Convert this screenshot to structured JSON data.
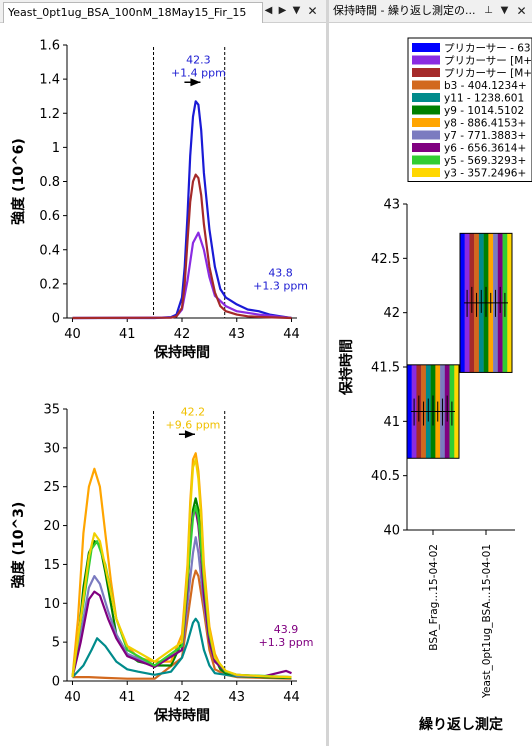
{
  "left_tab": {
    "title": "Yeast_0pt1ug_BSA_100nM_18May15_Fir_15"
  },
  "right_tab": {
    "title": "保持時間 - 繰り返し測定の..."
  },
  "chart_data": [
    {
      "type": "line",
      "xlabel": "保持時間",
      "ylabel": "強度 (10^6)",
      "xlim": [
        39.9,
        44.1
      ],
      "ylim": [
        0,
        1.6
      ],
      "xticks": [
        "40",
        "41",
        "42",
        "43",
        "44"
      ],
      "yticks": [
        "0",
        "0.2",
        "0.4",
        "0.6",
        "0.8",
        "1",
        "1.2",
        "1.4",
        "1.6"
      ],
      "integration_bounds": [
        41.48,
        42.78
      ],
      "annotations": [
        {
          "x": 42.3,
          "y": 1.27,
          "lines": [
            "42.3",
            "+1.4 ppm"
          ],
          "color": "#1c1cd2",
          "marker": "flag"
        },
        {
          "x": 43.8,
          "y": 0.02,
          "lines": [
            "43.8",
            "+1.3 ppm"
          ],
          "color": "#1c1cd2"
        }
      ],
      "series": [
        {
          "color": "#1a1ad6",
          "x": [
            40.0,
            40.5,
            41.0,
            41.5,
            41.8,
            41.9,
            42.0,
            42.05,
            42.1,
            42.15,
            42.2,
            42.25,
            42.3,
            42.35,
            42.4,
            42.5,
            42.6,
            42.7,
            42.8,
            42.9,
            43.0,
            43.2,
            43.4,
            43.6,
            43.8,
            44.0
          ],
          "y": [
            0,
            0,
            0,
            0,
            0.005,
            0.02,
            0.12,
            0.3,
            0.6,
            0.95,
            1.18,
            1.27,
            1.25,
            1.1,
            0.85,
            0.52,
            0.3,
            0.17,
            0.12,
            0.1,
            0.08,
            0.05,
            0.04,
            0.02,
            0.01,
            0
          ]
        },
        {
          "color": "#8a2be2",
          "x": [
            40.0,
            41.8,
            41.9,
            42.0,
            42.1,
            42.2,
            42.3,
            42.4,
            42.5,
            42.6,
            42.8,
            43.0,
            43.4,
            44.0
          ],
          "y": [
            0,
            0.003,
            0.01,
            0.05,
            0.22,
            0.44,
            0.5,
            0.4,
            0.24,
            0.13,
            0.07,
            0.04,
            0.02,
            0
          ]
        },
        {
          "color": "#a52a2a",
          "x": [
            40.0,
            41.8,
            41.9,
            42.0,
            42.05,
            42.1,
            42.15,
            42.2,
            42.25,
            42.3,
            42.35,
            42.4,
            42.5,
            42.6,
            42.7,
            42.8,
            43.0,
            43.2,
            43.5,
            44.0
          ],
          "y": [
            0,
            0.002,
            0.01,
            0.06,
            0.2,
            0.45,
            0.68,
            0.8,
            0.84,
            0.82,
            0.72,
            0.55,
            0.3,
            0.15,
            0.07,
            0.04,
            0.02,
            0.01,
            0.005,
            0
          ]
        }
      ]
    },
    {
      "type": "line",
      "xlabel": "保持時間",
      "ylabel": "強度 (10^3)",
      "xlim": [
        39.9,
        44.1
      ],
      "ylim": [
        0,
        35
      ],
      "xticks": [
        "40",
        "41",
        "42",
        "43",
        "44"
      ],
      "yticks": [
        "0",
        "5",
        "10",
        "15",
        "20",
        "25",
        "30",
        "35"
      ],
      "integration_bounds": [
        41.48,
        42.78
      ],
      "annotations": [
        {
          "x": 42.2,
          "y": 29.3,
          "lines": [
            "42.2",
            "+9.6 ppm"
          ],
          "color": "#f0c000",
          "marker": "flag"
        },
        {
          "x": 43.9,
          "y": 1.3,
          "lines": [
            "43.9",
            "+1.3 ppm"
          ],
          "color": "#800080"
        }
      ],
      "series": [
        {
          "color": "#d2691e",
          "x": [
            40.0,
            40.3,
            40.6,
            41.0,
            41.5,
            42.0,
            42.1,
            42.2,
            42.25,
            42.3,
            42.4,
            42.5,
            42.6,
            42.8,
            43.0,
            44.0
          ],
          "y": [
            0.5,
            0.5,
            0.4,
            0.3,
            0.3,
            3,
            8,
            13,
            14.2,
            13.5,
            9,
            4,
            1.5,
            0.8,
            0.5,
            0.3
          ]
        },
        {
          "color": "#008b8b",
          "x": [
            40.0,
            40.2,
            40.35,
            40.45,
            40.6,
            40.8,
            41.0,
            41.2,
            41.5,
            41.8,
            42.0,
            42.1,
            42.2,
            42.25,
            42.3,
            42.4,
            42.5,
            42.6,
            42.8,
            43.0,
            43.5,
            44.0
          ],
          "y": [
            0.5,
            2,
            4,
            5.5,
            4.5,
            2.5,
            1.5,
            1.2,
            0.8,
            1.2,
            3,
            5,
            7.5,
            8,
            7.5,
            4,
            2,
            1,
            0.8,
            0.6,
            0.5,
            0.4
          ]
        },
        {
          "color": "#008000",
          "x": [
            40.0,
            40.1,
            40.2,
            40.3,
            40.4,
            40.5,
            40.6,
            40.7,
            40.8,
            41.0,
            41.2,
            41.5,
            41.8,
            42.0,
            42.1,
            42.15,
            42.2,
            42.25,
            42.3,
            42.35,
            42.4,
            42.5,
            42.6,
            42.7,
            42.8,
            43.0,
            43.5,
            44.0
          ],
          "y": [
            0.5,
            5,
            12,
            16.5,
            18,
            17.5,
            14,
            10,
            6,
            3.5,
            2.5,
            2,
            2,
            5,
            12,
            18,
            22,
            23.5,
            22,
            18,
            13,
            6,
            3,
            1.5,
            1,
            0.7,
            0.5,
            0.4
          ]
        },
        {
          "color": "#ffa500",
          "x": [
            40.0,
            40.1,
            40.2,
            40.3,
            40.4,
            40.5,
            40.6,
            40.7,
            40.8,
            41.0,
            41.2,
            41.5,
            41.8,
            42.0,
            42.1,
            42.15,
            42.2,
            42.25,
            42.3,
            42.35,
            42.4,
            42.5,
            42.6,
            42.7,
            42.8,
            43.0,
            43.5,
            44.0
          ],
          "y": [
            0.5,
            8,
            19,
            25,
            27.3,
            25,
            19,
            13,
            8,
            4.5,
            3,
            2.5,
            2.5,
            6,
            15,
            23,
            28.5,
            29.3,
            27,
            22,
            15,
            7,
            3.5,
            2,
            1.2,
            0.8,
            0.6,
            0.5
          ]
        },
        {
          "color": "#7b7bc0",
          "x": [
            40.0,
            40.15,
            40.3,
            40.4,
            40.5,
            40.65,
            40.8,
            41.0,
            41.5,
            42.0,
            42.1,
            42.2,
            42.25,
            42.3,
            42.4,
            42.5,
            42.6,
            42.8,
            43.0,
            44.0
          ],
          "y": [
            0.5,
            6,
            12,
            13.5,
            12.5,
            9,
            6,
            3.5,
            2,
            4,
            10,
            16.5,
            18.5,
            16.5,
            10,
            5,
            2.5,
            1.2,
            0.7,
            0.5
          ]
        },
        {
          "color": "#800080",
          "x": [
            40.0,
            40.15,
            40.3,
            40.4,
            40.5,
            40.65,
            40.8,
            41.0,
            41.5,
            42.0,
            42.1,
            42.15,
            42.2,
            42.25,
            42.3,
            42.35,
            42.4,
            42.5,
            42.6,
            42.8,
            43.0,
            43.5,
            43.9,
            44.0
          ],
          "y": [
            0.5,
            5,
            10.5,
            11.5,
            11,
            8,
            5.5,
            3.2,
            1.8,
            4,
            12,
            18,
            21.5,
            22,
            20,
            16,
            11,
            5,
            2.5,
            1.2,
            0.8,
            0.6,
            1.3,
            1.0
          ]
        },
        {
          "color": "#32cd32",
          "x": [
            40.0,
            40.2,
            40.35,
            40.45,
            40.6,
            40.8,
            41.0,
            41.5,
            42.0,
            42.1,
            42.2,
            42.25,
            42.3,
            42.4,
            42.5,
            42.6,
            42.8,
            43.0,
            44.0
          ],
          "y": [
            0.5,
            10,
            17,
            18,
            15,
            8,
            4,
            2,
            4.5,
            13,
            21,
            22.5,
            21,
            13,
            6,
            3,
            1.2,
            0.8,
            0.5
          ]
        },
        {
          "color": "#f0d000",
          "x": [
            40.0,
            40.15,
            40.3,
            40.4,
            40.5,
            40.65,
            40.8,
            41.0,
            41.5,
            42.0,
            42.1,
            42.15,
            42.2,
            42.25,
            42.3,
            42.35,
            42.4,
            42.5,
            42.6,
            42.8,
            43.0,
            43.5,
            44.0
          ],
          "y": [
            0.5,
            8,
            16,
            19,
            18,
            13,
            8,
            4.5,
            2.5,
            5,
            14,
            22,
            27.5,
            28.5,
            26,
            21,
            14,
            6.5,
            3,
            1.3,
            0.8,
            0.6,
            0.5
          ]
        }
      ]
    },
    {
      "type": "box",
      "xlabel": "繰り返し測定",
      "ylabel": "保持時間",
      "ylim": [
        40,
        43
      ],
      "yticks": [
        "40",
        "40.5",
        "41",
        "41.5",
        "42",
        "42.5",
        "43"
      ],
      "categories": [
        "BSA_Frag...15-04-02",
        "Yeast_0pt1ug_BSA...15-04-01"
      ],
      "groups": [
        {
          "low": 40.66,
          "high": 41.52
        },
        {
          "low": 41.45,
          "high": 42.73
        }
      ],
      "legend": {
        "position": "top-right",
        "entries": [
          {
            "label": "プリカーサー - 63",
            "color": "#0000ff"
          },
          {
            "label": "プリカーサー [M+",
            "color": "#8a2be2"
          },
          {
            "label": "プリカーサー [M+",
            "color": "#a52a2a"
          },
          {
            "label": "b3 - 404.1234+",
            "color": "#d2691e"
          },
          {
            "label": "y11 - 1238.601",
            "color": "#008b8b"
          },
          {
            "label": "y9 - 1014.5102",
            "color": "#008000"
          },
          {
            "label": "y8 - 886.4153+",
            "color": "#ffa500"
          },
          {
            "label": "y7 - 771.3883+",
            "color": "#7b7bc0"
          },
          {
            "label": "y6 - 656.3614+",
            "color": "#800080"
          },
          {
            "label": "y5 - 569.3293+",
            "color": "#32cd32"
          },
          {
            "label": "y3 - 357.2496+",
            "color": "#ffd700"
          }
        ]
      }
    }
  ]
}
